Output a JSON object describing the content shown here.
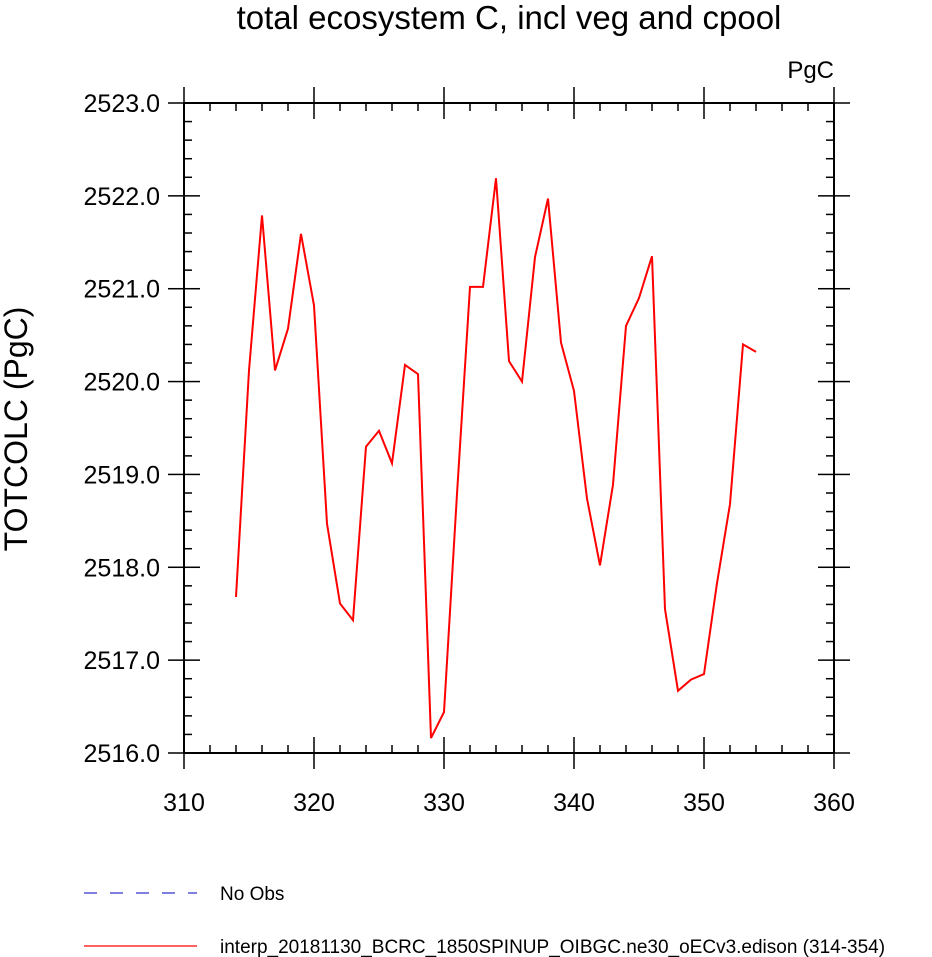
{
  "chart_data": {
    "type": "line",
    "title": "total ecosystem C, incl veg and cpool",
    "units": "PgC",
    "ylabel": "TOTCOLC  (PgC)",
    "xlabel": "",
    "xlim": [
      310,
      360
    ],
    "ylim": [
      2516.0,
      2523.0
    ],
    "x_ticks": [
      310,
      320,
      330,
      340,
      350,
      360
    ],
    "x_tick_labels": [
      "310",
      "320",
      "330",
      "340",
      "350",
      "360"
    ],
    "y_ticks": [
      2516.0,
      2517.0,
      2518.0,
      2519.0,
      2520.0,
      2521.0,
      2522.0,
      2523.0
    ],
    "y_tick_labels": [
      "2516.0",
      "2517.0",
      "2518.0",
      "2519.0",
      "2520.0",
      "2521.0",
      "2522.0",
      "2523.0"
    ],
    "grid": false,
    "legend_position": "bottom",
    "legend": [
      {
        "label": "No Obs",
        "color": "#3333cc",
        "style": "dashed"
      },
      {
        "label": "interp_20181130_BCRC_1850SPINUP_OIBGC.ne30_oECv3.edison (314-354)",
        "color": "#ff0000",
        "style": "solid"
      }
    ],
    "series": [
      {
        "color": "#ff0000",
        "x": [
          314,
          315,
          316,
          317,
          318,
          319,
          320,
          321,
          322,
          323,
          324,
          325,
          326,
          327,
          328,
          329,
          330,
          331,
          332,
          333,
          334,
          335,
          336,
          337,
          338,
          339,
          340,
          341,
          342,
          343,
          344,
          345,
          346,
          347,
          348,
          349,
          350,
          351,
          352,
          353,
          354
        ],
        "y": [
          2517.68,
          2520.12,
          2521.79,
          2520.12,
          2520.57,
          2521.59,
          2520.82,
          2518.47,
          2517.61,
          2517.43,
          2519.3,
          2519.47,
          2519.12,
          2520.18,
          2520.08,
          2516.16,
          2516.44,
          2518.79,
          2521.02,
          2521.02,
          2522.19,
          2520.22,
          2520.0,
          2521.34,
          2521.97,
          2520.42,
          2519.9,
          2518.74,
          2518.02,
          2518.89,
          2520.6,
          2520.9,
          2521.35,
          2517.55,
          2516.67,
          2516.79,
          2516.85,
          2517.83,
          2518.68,
          2520.4,
          2520.32
        ]
      }
    ]
  }
}
